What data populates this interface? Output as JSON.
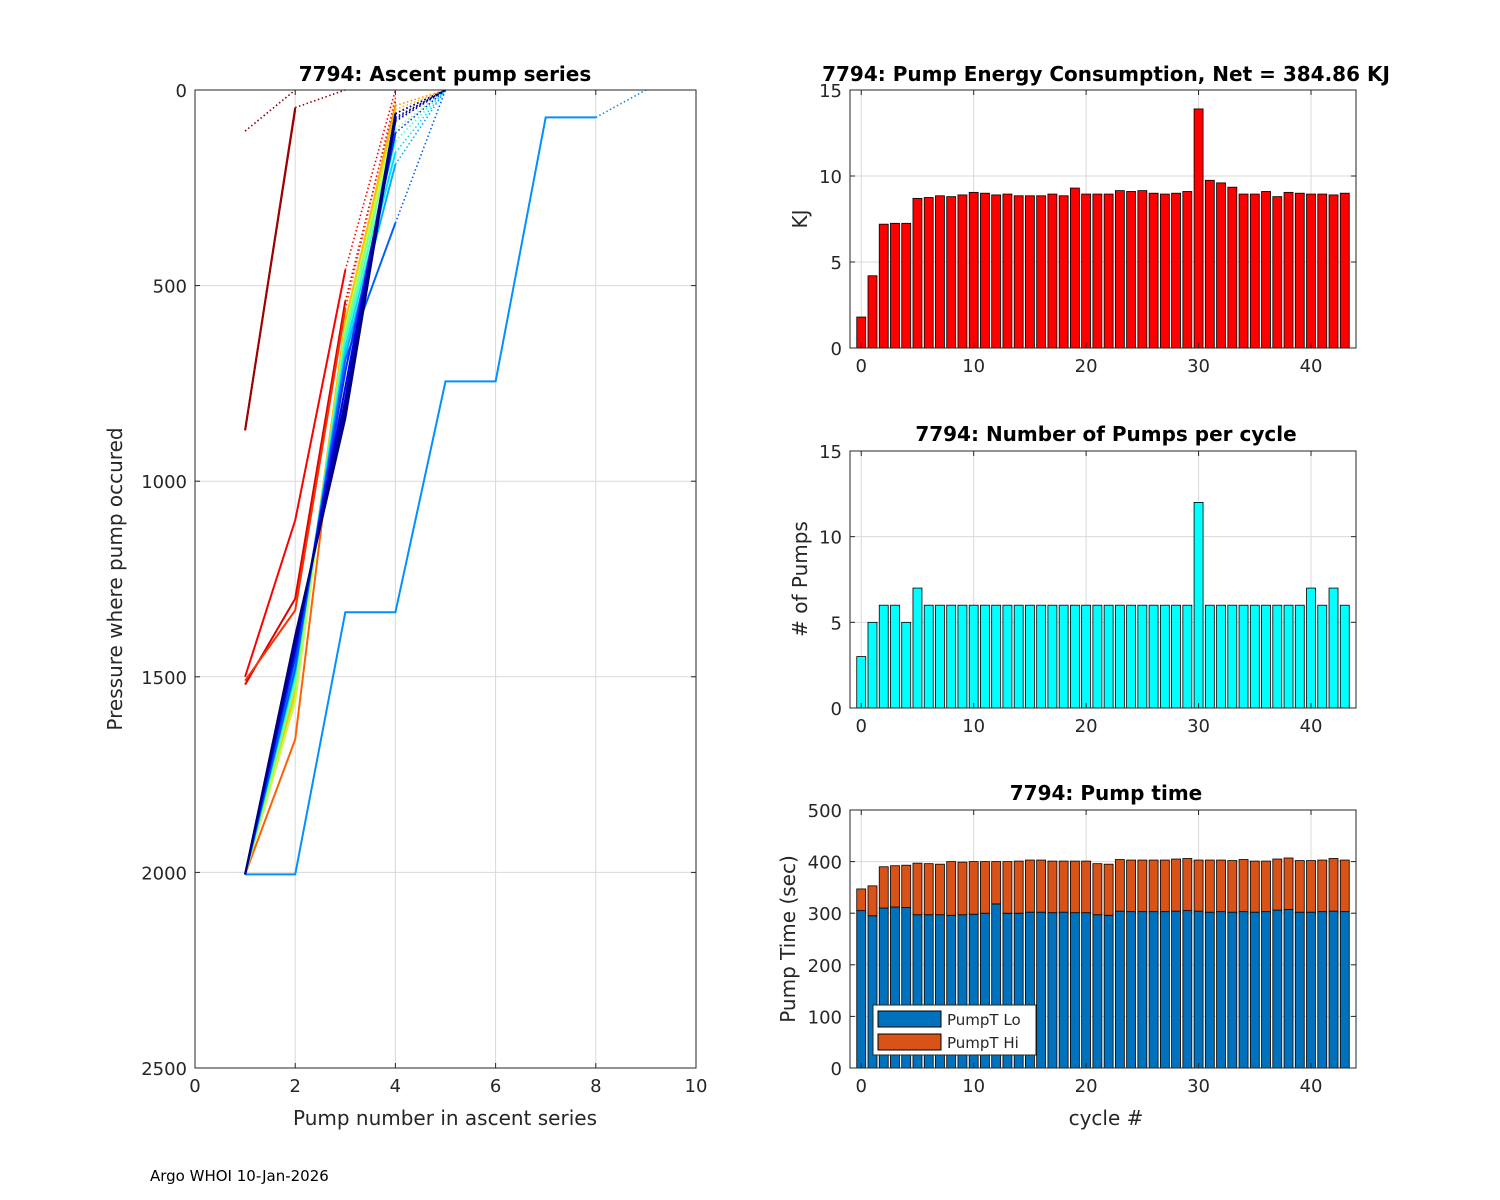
{
  "footer": "Argo WHOI 10-Jan-2026",
  "colors": {
    "energy": "#ff0000",
    "pumps": "#00ffff",
    "lo": "#0072bd",
    "hi": "#d95319",
    "grid": "#d9d9d9"
  },
  "chart_data": [
    {
      "id": "ascent",
      "type": "line",
      "title": "7794: Ascent pump series",
      "xlabel": "Pump number in ascent series",
      "ylabel": "Pressure where pump occured",
      "xlim": [
        0,
        10
      ],
      "ylim": [
        0,
        2500
      ],
      "y_reversed": true,
      "xticks": [
        0,
        2,
        4,
        6,
        8,
        10
      ],
      "yticks": [
        0,
        500,
        1000,
        1500,
        2000,
        2500
      ],
      "series": [
        {
          "name": "c0",
          "color": "#800000",
          "solid": [
            [
              1,
              870
            ],
            [
              2,
              50
            ]
          ],
          "dotted": [
            [
              1,
              105
            ],
            [
              2,
              0
            ]
          ]
        },
        {
          "name": "c1",
          "color": "#a00000",
          "solid": [
            [
              1,
              870
            ],
            [
              2,
              45
            ]
          ],
          "dotted": [
            [
              2,
              45
            ],
            [
              3,
              0
            ]
          ]
        },
        {
          "name": "c2",
          "color": "#ff0000",
          "solid": [
            [
              1,
              1500
            ],
            [
              2,
              1100
            ],
            [
              3,
              460
            ]
          ],
          "dotted": [
            [
              3,
              460
            ],
            [
              4,
              0
            ]
          ]
        },
        {
          "name": "c3",
          "color": "#e00000",
          "solid": [
            [
              1,
              1520
            ],
            [
              2,
              1300
            ],
            [
              3,
              540
            ]
          ],
          "dotted": [
            [
              3,
              540
            ],
            [
              4,
              30
            ]
          ]
        },
        {
          "name": "c4",
          "color": "#ff3000",
          "solid": [
            [
              1,
              1510
            ],
            [
              2,
              1330
            ],
            [
              3,
              560
            ]
          ],
          "dotted": [
            [
              3,
              560
            ],
            [
              4,
              20
            ]
          ]
        },
        {
          "name": "c5",
          "color": "#ff6000",
          "solid": [
            [
              1,
              2005
            ],
            [
              2,
              1660
            ],
            [
              3,
              620
            ],
            [
              4,
              60
            ]
          ],
          "dotted": [
            [
              4,
              60
            ],
            [
              5,
              0
            ]
          ]
        },
        {
          "name": "c6",
          "color": "#ff9000",
          "solid": [
            [
              1,
              2005
            ],
            [
              2,
              1560
            ],
            [
              3,
              600
            ],
            [
              4,
              40
            ]
          ],
          "dotted": [
            [
              4,
              40
            ],
            [
              5,
              0
            ]
          ]
        },
        {
          "name": "c7",
          "color": "#ffc000",
          "solid": [
            [
              1,
              2005
            ],
            [
              2,
              1540
            ],
            [
              3,
              590
            ],
            [
              4,
              50
            ]
          ],
          "dotted": [
            [
              4,
              50
            ],
            [
              5,
              0
            ]
          ]
        },
        {
          "name": "c8",
          "color": "#c0ff40",
          "solid": [
            [
              1,
              2005
            ],
            [
              2,
              1560
            ],
            [
              3,
              610
            ],
            [
              4,
              70
            ]
          ],
          "dotted": [
            [
              4,
              70
            ],
            [
              5,
              0
            ]
          ]
        },
        {
          "name": "c9",
          "color": "#80ff80",
          "solid": [
            [
              1,
              2005
            ],
            [
              2,
              1520
            ],
            [
              3,
              620
            ],
            [
              4,
              100
            ]
          ],
          "dotted": [
            [
              4,
              100
            ],
            [
              5,
              0
            ]
          ]
        },
        {
          "name": "c10",
          "color": "#40ffc0",
          "solid": [
            [
              1,
              2005
            ],
            [
              2,
              1500
            ],
            [
              3,
              640
            ],
            [
              4,
              130
            ]
          ],
          "dotted": [
            [
              4,
              130
            ],
            [
              5,
              0
            ]
          ]
        },
        {
          "name": "c11",
          "color": "#00e0ff",
          "solid": [
            [
              1,
              2005
            ],
            [
              2,
              1490
            ],
            [
              3,
              660
            ],
            [
              4,
              160
            ]
          ],
          "dotted": [
            [
              4,
              160
            ],
            [
              5,
              0
            ]
          ]
        },
        {
          "name": "c12",
          "color": "#00b0ff",
          "solid": [
            [
              1,
              2005
            ],
            [
              2,
              1470
            ],
            [
              3,
              680
            ],
            [
              4,
              190
            ]
          ],
          "dotted": [
            [
              4,
              190
            ],
            [
              5,
              0
            ]
          ]
        },
        {
          "name": "c13",
          "color": "#0090ff",
          "solid": [
            [
              1,
              2005
            ],
            [
              2,
              2005
            ],
            [
              3,
              1335
            ],
            [
              4,
              1335
            ],
            [
              5,
              745
            ],
            [
              6,
              745
            ],
            [
              7,
              70
            ],
            [
              8,
              70
            ]
          ],
          "dotted": [
            [
              8,
              70
            ],
            [
              9,
              0
            ]
          ]
        },
        {
          "name": "c14",
          "color": "#0060ff",
          "solid": [
            [
              1,
              2005
            ],
            [
              2,
              1480
            ],
            [
              3,
              690
            ],
            [
              4,
              340
            ]
          ],
          "dotted": [
            [
              4,
              340
            ],
            [
              5,
              0
            ]
          ]
        },
        {
          "name": "c15",
          "color": "#0030ff",
          "solid": [
            [
              1,
              2005
            ],
            [
              2,
              1450
            ],
            [
              3,
              720
            ],
            [
              4,
              110
            ]
          ],
          "dotted": [
            [
              4,
              110
            ],
            [
              5,
              0
            ]
          ]
        },
        {
          "name": "c16",
          "color": "#0000e0",
          "solid": [
            [
              1,
              2005
            ],
            [
              2,
              1430
            ],
            [
              3,
              760
            ],
            [
              4,
              80
            ]
          ],
          "dotted": [
            [
              4,
              80
            ],
            [
              5,
              0
            ]
          ]
        },
        {
          "name": "c17",
          "color": "#0000c0",
          "solid": [
            [
              1,
              2005
            ],
            [
              2,
              1420
            ],
            [
              3,
              790
            ],
            [
              4,
              60
            ]
          ],
          "dotted": [
            [
              4,
              60
            ],
            [
              5,
              0
            ]
          ]
        },
        {
          "name": "c18",
          "color": "#0000a0",
          "solid": [
            [
              1,
              2005
            ],
            [
              2,
              1410
            ],
            [
              3,
              810
            ],
            [
              4,
              70
            ]
          ],
          "dotted": [
            [
              4,
              70
            ],
            [
              5,
              0
            ]
          ]
        },
        {
          "name": "c19",
          "color": "#000090",
          "solid": [
            [
              1,
              2005
            ],
            [
              2,
              1400
            ],
            [
              3,
              830
            ],
            [
              4,
              60
            ]
          ],
          "dotted": [
            [
              4,
              60
            ],
            [
              5,
              0
            ]
          ]
        },
        {
          "name": "c20",
          "color": "#000080",
          "solid": [
            [
              1,
              2005
            ],
            [
              2,
              1395
            ],
            [
              3,
              840
            ],
            [
              4,
              75
            ]
          ],
          "dotted": [
            [
              4,
              75
            ],
            [
              5,
              0
            ]
          ]
        }
      ]
    },
    {
      "id": "energy",
      "type": "bar",
      "title": "7794: Pump Energy Consumption,  Net = 384.86 KJ",
      "xlabel": "",
      "ylabel": "KJ",
      "xlim": [
        -1,
        44
      ],
      "ylim": [
        0,
        15
      ],
      "xticks": [
        0,
        10,
        20,
        30,
        40
      ],
      "yticks": [
        0,
        5,
        10,
        15
      ],
      "categories": [
        0,
        1,
        2,
        3,
        4,
        5,
        6,
        7,
        8,
        9,
        10,
        11,
        12,
        13,
        14,
        15,
        16,
        17,
        18,
        19,
        20,
        21,
        22,
        23,
        24,
        25,
        26,
        27,
        28,
        29,
        30,
        31,
        32,
        33,
        34,
        35,
        36,
        37,
        38,
        39,
        40,
        41,
        42,
        43
      ],
      "values": [
        1.8,
        4.2,
        7.2,
        7.25,
        7.25,
        8.7,
        8.75,
        8.85,
        8.8,
        8.9,
        9.05,
        9.0,
        8.9,
        8.95,
        8.85,
        8.85,
        8.85,
        8.95,
        8.85,
        9.3,
        8.95,
        8.95,
        8.95,
        9.15,
        9.1,
        9.15,
        9.0,
        8.95,
        9.0,
        9.1,
        13.9,
        9.75,
        9.6,
        9.35,
        8.95,
        8.95,
        9.1,
        8.8,
        9.05,
        9.0,
        8.95,
        8.95,
        8.9,
        9.0
      ]
    },
    {
      "id": "pumps",
      "type": "bar",
      "title": "7794: Number of Pumps per cycle",
      "xlabel": "",
      "ylabel": "# of Pumps",
      "xlim": [
        -1,
        44
      ],
      "ylim": [
        0,
        15
      ],
      "xticks": [
        0,
        10,
        20,
        30,
        40
      ],
      "yticks": [
        0,
        5,
        10,
        15
      ],
      "categories": [
        0,
        1,
        2,
        3,
        4,
        5,
        6,
        7,
        8,
        9,
        10,
        11,
        12,
        13,
        14,
        15,
        16,
        17,
        18,
        19,
        20,
        21,
        22,
        23,
        24,
        25,
        26,
        27,
        28,
        29,
        30,
        31,
        32,
        33,
        34,
        35,
        36,
        37,
        38,
        39,
        40,
        41,
        42,
        43
      ],
      "values": [
        3,
        5,
        6,
        6,
        5,
        7,
        6,
        6,
        6,
        6,
        6,
        6,
        6,
        6,
        6,
        6,
        6,
        6,
        6,
        6,
        6,
        6,
        6,
        6,
        6,
        6,
        6,
        6,
        6,
        6,
        12,
        6,
        6,
        6,
        6,
        6,
        6,
        6,
        6,
        6,
        7,
        6,
        7,
        6
      ]
    },
    {
      "id": "pumptime",
      "type": "bar",
      "stacked": true,
      "title": "7794: Pump time",
      "xlabel": "cycle #",
      "ylabel": "Pump Time (sec)",
      "xlim": [
        -1,
        44
      ],
      "ylim": [
        0,
        500
      ],
      "xticks": [
        0,
        10,
        20,
        30,
        40
      ],
      "yticks": [
        0,
        100,
        200,
        300,
        400,
        500
      ],
      "legend_position": "bottom-left",
      "categories": [
        0,
        1,
        2,
        3,
        4,
        5,
        6,
        7,
        8,
        9,
        10,
        11,
        12,
        13,
        14,
        15,
        16,
        17,
        18,
        19,
        20,
        21,
        22,
        23,
        24,
        25,
        26,
        27,
        28,
        29,
        30,
        31,
        32,
        33,
        34,
        35,
        36,
        37,
        38,
        39,
        40,
        41,
        42,
        43
      ],
      "series": [
        {
          "name": "PumpT Lo",
          "values": [
            305,
            295,
            310,
            312,
            311,
            297,
            297,
            297,
            296,
            297,
            298,
            300,
            318,
            300,
            300,
            302,
            302,
            301,
            302,
            301,
            301,
            297,
            296,
            304,
            303,
            303,
            303,
            303,
            304,
            305,
            304,
            302,
            303,
            302,
            303,
            302,
            303,
            306,
            307,
            302,
            302,
            303,
            304,
            303
          ]
        },
        {
          "name": "PumpT Hi",
          "values": [
            42,
            58,
            80,
            80,
            82,
            100,
            99,
            98,
            104,
            102,
            102,
            100,
            82,
            100,
            101,
            101,
            101,
            100,
            99,
            100,
            100,
            99,
            99,
            100,
            100,
            100,
            100,
            100,
            101,
            101,
            99,
            101,
            100,
            100,
            101,
            99,
            98,
            99,
            100,
            100,
            100,
            100,
            102,
            100
          ]
        }
      ]
    }
  ]
}
